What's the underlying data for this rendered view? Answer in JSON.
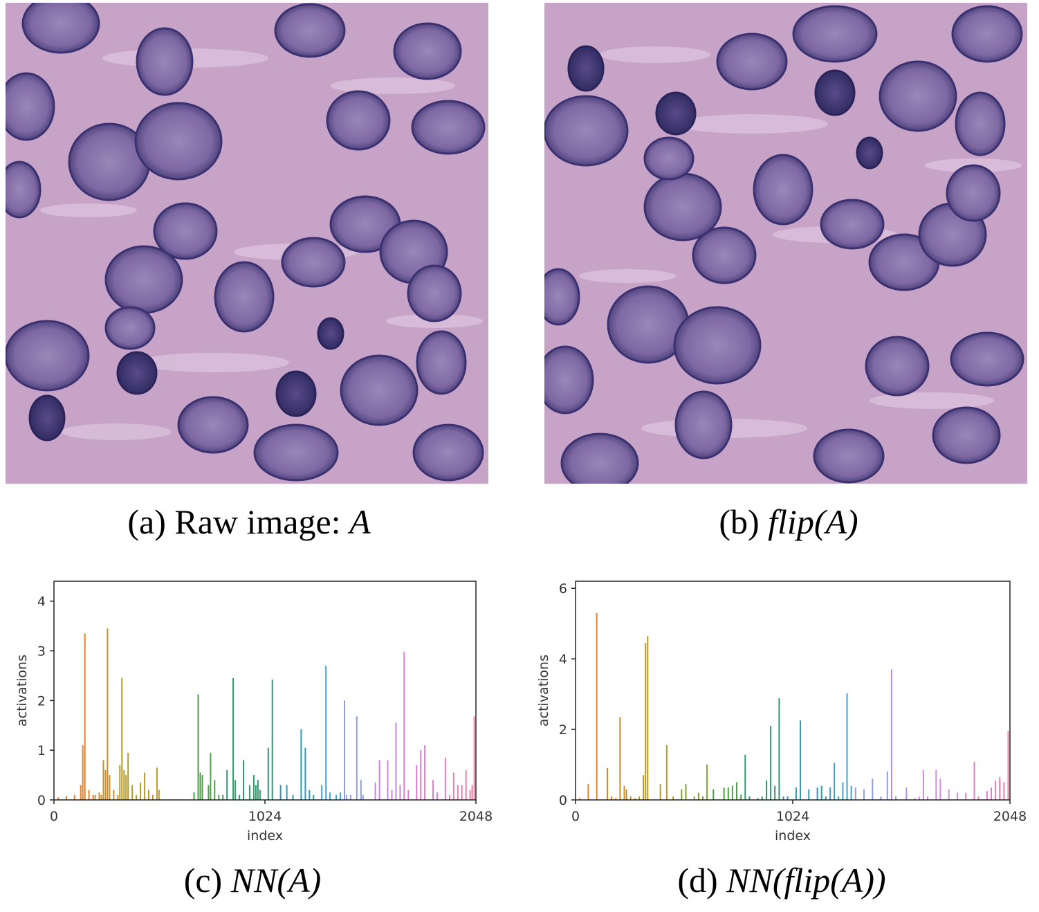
{
  "panels": {
    "a": {
      "caption_prefix": "(a) Raw image: ",
      "caption_math": "A"
    },
    "b": {
      "caption_prefix": "(b) ",
      "caption_math": "flip(A)"
    },
    "c": {
      "caption_prefix": "(c) ",
      "caption_math": "NN(A)"
    },
    "d": {
      "caption_prefix": "(d) ",
      "caption_math": "NN(flip(A))"
    }
  },
  "chart_data": [
    {
      "type": "bar",
      "panel": "c",
      "xlabel": "index",
      "ylabel": "activations",
      "xlim": [
        0,
        2048
      ],
      "ylim": [
        0,
        4.4
      ],
      "xticks": [
        "0",
        "1024",
        "2048"
      ],
      "yticks": [
        "0",
        "1",
        "2",
        "3",
        "4"
      ],
      "grid": false,
      "series": [
        {
          "color": "#e1812c",
          "x": [
            20,
            60,
            100,
            130,
            140,
            150,
            170,
            190
          ],
          "values": [
            0.05,
            0.08,
            0.1,
            0.3,
            1.1,
            3.35,
            0.2,
            0.1
          ]
        },
        {
          "color": "#c98c2a",
          "x": [
            200,
            220,
            230,
            240,
            250,
            260,
            270,
            290
          ],
          "values": [
            0.1,
            0.15,
            0.1,
            0.8,
            0.6,
            3.45,
            0.5,
            0.2
          ]
        },
        {
          "color": "#b79a24",
          "x": [
            310,
            320,
            330,
            340,
            350,
            360,
            380,
            400,
            420,
            440,
            460,
            480,
            500,
            510
          ],
          "values": [
            0.1,
            0.7,
            2.45,
            0.6,
            0.5,
            0.95,
            0.3,
            0.1,
            0.35,
            0.55,
            0.2,
            0.1,
            0.65,
            0.2
          ]
        },
        {
          "color": "#4ba146",
          "x": [
            680,
            700,
            710,
            720,
            750,
            760,
            780,
            800
          ],
          "values": [
            0.15,
            2.12,
            0.55,
            0.5,
            0.3,
            0.95,
            0.4,
            0.1
          ]
        },
        {
          "color": "#2f9a6a",
          "x": [
            820,
            840,
            870,
            880,
            900,
            920,
            950,
            970,
            980,
            990,
            1000,
            1040,
            1060
          ],
          "values": [
            0.1,
            0.6,
            2.45,
            0.4,
            0.1,
            0.8,
            0.3,
            0.5,
            0.3,
            0.4,
            0.2,
            1.05,
            2.42
          ]
        },
        {
          "color": "#2a9bb0",
          "x": [
            1100,
            1130,
            1160,
            1200,
            1220,
            1240,
            1260
          ],
          "values": [
            0.3,
            0.3,
            0.1,
            1.42,
            1.05,
            0.2,
            0.1
          ]
        },
        {
          "color": "#3ea2d6",
          "x": [
            1300,
            1320,
            1340,
            1370,
            1390
          ],
          "values": [
            0.3,
            2.7,
            0.15,
            0.1,
            0.15
          ]
        },
        {
          "color": "#8f9de6",
          "x": [
            1410,
            1420,
            1440,
            1470,
            1490,
            1500
          ],
          "values": [
            2.0,
            0.1,
            0.1,
            1.68,
            0.4,
            0.1
          ]
        },
        {
          "color": "#c485e0",
          "x": [
            1560,
            1580,
            1620,
            1640,
            1660,
            1680
          ],
          "values": [
            0.35,
            0.8,
            0.8,
            0.2,
            1.55,
            0.3
          ]
        },
        {
          "color": "#e27cc6",
          "x": [
            1700,
            1720,
            1760,
            1780,
            1800,
            1840,
            1860,
            1900
          ],
          "values": [
            2.98,
            0.2,
            0.7,
            1.0,
            1.1,
            0.4,
            0.15,
            0.85
          ]
        },
        {
          "color": "#ea7fa6",
          "x": [
            1920,
            1940,
            1960,
            1980,
            2000,
            2020,
            2030,
            2040
          ],
          "values": [
            0.1,
            0.55,
            0.3,
            0.3,
            0.6,
            0.2,
            0.3,
            1.68
          ]
        }
      ]
    },
    {
      "type": "bar",
      "panel": "d",
      "xlabel": "index",
      "ylabel": "activations",
      "xlim": [
        0,
        2048
      ],
      "ylim": [
        0,
        6.2
      ],
      "xticks": [
        "0",
        "1024",
        "2048"
      ],
      "yticks": [
        "0",
        "2",
        "4",
        "6"
      ],
      "grid": false,
      "series": [
        {
          "color": "#e1812c",
          "x": [
            20,
            60,
            100,
            150,
            170,
            190
          ],
          "values": [
            0.05,
            0.45,
            5.3,
            0.9,
            0.1,
            0.05
          ]
        },
        {
          "color": "#c98c2a",
          "x": [
            210,
            230,
            240,
            260,
            280
          ],
          "values": [
            2.35,
            0.4,
            0.3,
            0.1,
            0.05
          ]
        },
        {
          "color": "#b79a24",
          "x": [
            300,
            320,
            330,
            340,
            400,
            430,
            460
          ],
          "values": [
            0.1,
            0.7,
            4.45,
            4.65,
            0.45,
            1.55,
            0.1
          ]
        },
        {
          "color": "#7fa22a",
          "x": [
            500,
            520,
            560,
            580,
            600,
            620
          ],
          "values": [
            0.3,
            0.45,
            0.1,
            0.2,
            0.1,
            1.0
          ]
        },
        {
          "color": "#4ba146",
          "x": [
            650,
            700,
            720,
            740,
            760,
            780
          ],
          "values": [
            0.3,
            0.35,
            0.35,
            0.4,
            0.5,
            0.15
          ]
        },
        {
          "color": "#2f9a6a",
          "x": [
            800,
            820,
            860,
            880,
            900,
            920,
            940,
            960
          ],
          "values": [
            1.28,
            0.1,
            0.05,
            0.1,
            0.55,
            2.1,
            0.4,
            2.88
          ]
        },
        {
          "color": "#2a9bb0",
          "x": [
            980,
            1000,
            1040,
            1060,
            1100,
            1140,
            1160,
            1180
          ],
          "values": [
            0.1,
            0.1,
            0.35,
            2.25,
            0.3,
            0.35,
            0.4,
            0.1
          ]
        },
        {
          "color": "#3ea2d6",
          "x": [
            1200,
            1220,
            1240,
            1260,
            1280,
            1300
          ],
          "values": [
            0.35,
            1.05,
            0.1,
            0.5,
            3.02,
            0.4
          ]
        },
        {
          "color": "#8f9de6",
          "x": [
            1320,
            1360,
            1400,
            1440,
            1470
          ],
          "values": [
            0.35,
            0.3,
            0.6,
            0.1,
            0.8
          ]
        },
        {
          "color": "#b58de6",
          "x": [
            1490,
            1510,
            1560,
            1600
          ],
          "values": [
            3.7,
            0.1,
            0.35,
            0.05
          ]
        },
        {
          "color": "#d68ce0",
          "x": [
            1620,
            1640,
            1660,
            1700,
            1720,
            1760,
            1800
          ],
          "values": [
            0.1,
            0.85,
            0.1,
            0.85,
            0.6,
            0.3,
            0.2
          ]
        },
        {
          "color": "#e27cc6",
          "x": [
            1840,
            1880,
            1900,
            1940,
            1960,
            2000
          ],
          "values": [
            0.2,
            1.08,
            0.1,
            0.25,
            0.35,
            0.55
          ]
        },
        {
          "color": "#ea7fa6",
          "x": [
            1980,
            2000,
            2020,
            2040
          ],
          "values": [
            0.55,
            0.65,
            0.5,
            1.95
          ]
        }
      ]
    }
  ]
}
